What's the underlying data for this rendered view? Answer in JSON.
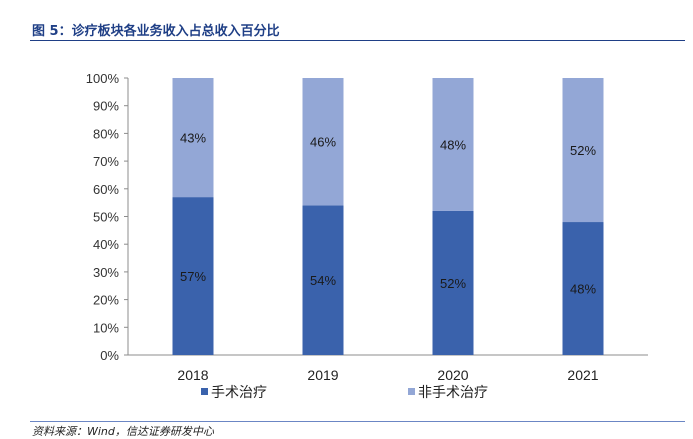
{
  "header": {
    "figure_title": "图 5：诊疗板块各业务收入占总收入百分比"
  },
  "footer": {
    "source": "资料来源：Wind，信达证券研发中心"
  },
  "chart_data": {
    "type": "bar",
    "stacked": true,
    "categories": [
      "2018",
      "2019",
      "2020",
      "2021"
    ],
    "series": [
      {
        "name": "手术治疗",
        "values": [
          57,
          54,
          52,
          48
        ],
        "labels": [
          "57%",
          "54%",
          "52%",
          "48%"
        ],
        "color": "#3a62ac"
      },
      {
        "name": "非手术治疗",
        "values": [
          43,
          46,
          48,
          52
        ],
        "labels": [
          "43%",
          "46%",
          "48%",
          "52%"
        ],
        "color": "#93a7d6"
      }
    ],
    "ylim": [
      0,
      100
    ],
    "yticks": [
      "0%",
      "10%",
      "20%",
      "30%",
      "40%",
      "50%",
      "60%",
      "70%",
      "80%",
      "90%",
      "100%"
    ],
    "grid": false,
    "legend": "bottom"
  }
}
